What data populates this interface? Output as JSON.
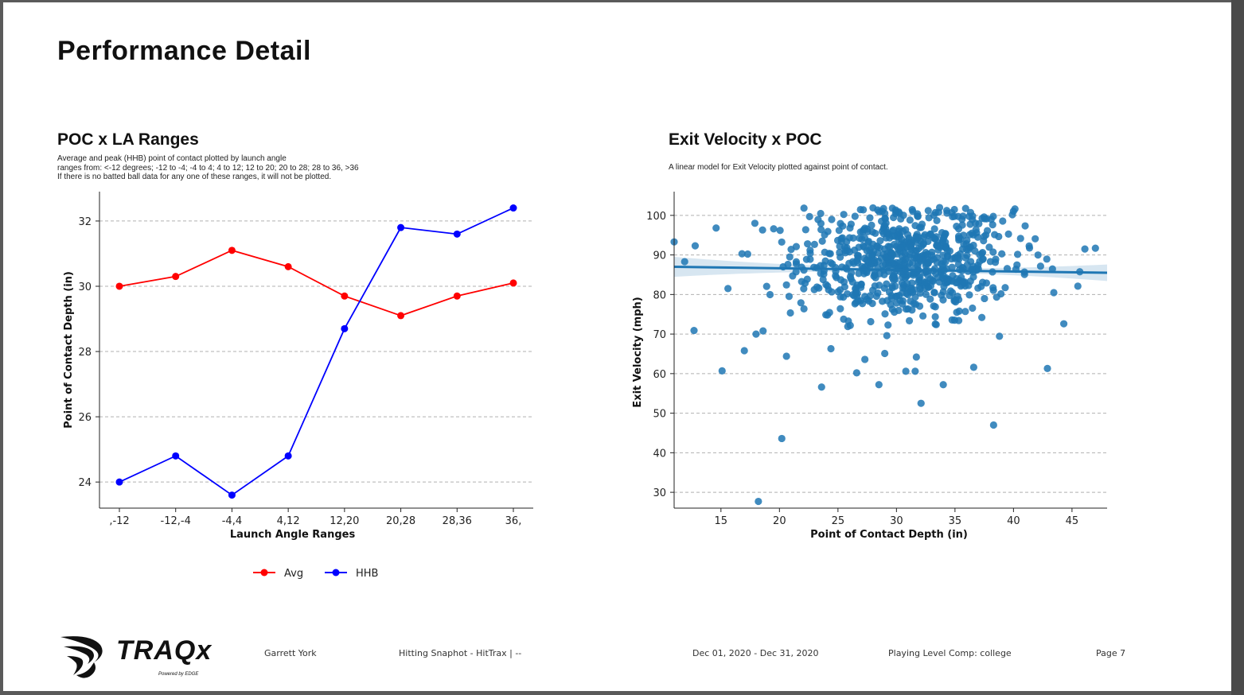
{
  "page": {
    "title": "Performance Detail",
    "background": "#ffffff"
  },
  "left_panel": {
    "title": "POC x LA Ranges",
    "description": "Average and peak (HHB) point of contact plotted by launch angle\nranges from: <-12 degrees; -12 to -4; -4 to 4; 4 to 12; 12 to 20; 20 to 28; 28 to 36, >36\n If there is no batted ball data for any one of these ranges, it will not be plotted."
  },
  "right_panel": {
    "title": "Exit Velocity x POC",
    "description": "A linear model for Exit Velocity plotted against point of contact."
  },
  "chart_data": [
    {
      "type": "line",
      "categories": [
        ",-12",
        "-12,-4",
        "-4,4",
        "4,12",
        "12,20",
        "20,28",
        "28,36",
        "36,"
      ],
      "series": [
        {
          "name": "Avg",
          "color": "#ff0000",
          "values": [
            30.0,
            30.3,
            31.1,
            30.6,
            29.7,
            29.1,
            29.7,
            30.1
          ]
        },
        {
          "name": "HHB",
          "color": "#0000ff",
          "values": [
            24.0,
            24.8,
            23.6,
            24.8,
            28.7,
            31.8,
            31.6,
            32.4
          ]
        }
      ],
      "xlabel": "Launch Angle Ranges",
      "ylabel": "Point of Contact Depth (in)",
      "ylim": [
        23.2,
        32.9
      ],
      "yticks": [
        24,
        26,
        28,
        30,
        32
      ],
      "grid": "horizontal dashed",
      "legend": "bottom-center"
    },
    {
      "type": "scatter",
      "title": "Exit Velocity x POC",
      "xlabel": "Point of Contact Depth (in)",
      "ylabel": "Exit Velocity (mph)",
      "xlim": [
        11,
        48
      ],
      "ylim": [
        26,
        106
      ],
      "xticks": [
        15,
        20,
        25,
        30,
        35,
        40,
        45
      ],
      "yticks": [
        30,
        40,
        50,
        60,
        70,
        80,
        90,
        100
      ],
      "color": "#1f77b4",
      "regression": {
        "x": [
          11,
          48
        ],
        "y": [
          87.0,
          85.5
        ],
        "ci_halfwidth_edge": 2.3,
        "ci_halfwidth_center": 0.5
      },
      "outliers": [
        [
          18.2,
          27.7
        ],
        [
          20.2,
          43.6
        ],
        [
          38.3,
          47.0
        ],
        [
          32.1,
          52.5
        ],
        [
          23.6,
          56.6
        ],
        [
          28.5,
          57.2
        ],
        [
          34.0,
          57.2
        ],
        [
          15.1,
          60.7
        ],
        [
          12.7,
          70.9
        ],
        [
          17.0,
          65.8
        ],
        [
          20.6,
          64.4
        ],
        [
          26.6,
          60.2
        ],
        [
          36.6,
          61.6
        ],
        [
          42.9,
          61.3
        ],
        [
          44.3,
          72.6
        ],
        [
          45.5,
          82.1
        ],
        [
          47.0,
          91.7
        ],
        [
          46.1,
          91.5
        ],
        [
          11.0,
          93.3
        ],
        [
          12.8,
          92.3
        ],
        [
          11.9,
          88.3
        ],
        [
          15.6,
          81.5
        ],
        [
          17.9,
          98.0
        ],
        [
          16.8,
          90.3
        ],
        [
          24.4,
          66.3
        ],
        [
          30.8,
          60.6
        ],
        [
          31.6,
          60.6
        ],
        [
          27.3,
          63.6
        ],
        [
          29.0,
          65.1
        ],
        [
          31.7,
          64.2
        ],
        [
          18.0,
          70.0
        ],
        [
          18.6,
          70.8
        ]
      ],
      "cloud_center": [
        30.6,
        88.5
      ],
      "cloud_spread": [
        4.6,
        7.2
      ],
      "cloud_count": 720,
      "grid": "horizontal dashed"
    }
  ],
  "footer": {
    "logo_text": "TRAQx",
    "logo_subtext": "Powered by EDGE",
    "player": "Garrett York",
    "report": "Hitting Snaphot - HitTrax | --",
    "date_range": "Dec 01, 2020 - Dec 31, 2020",
    "level": "Playing Level Comp: college",
    "page_label": "Page 7"
  }
}
